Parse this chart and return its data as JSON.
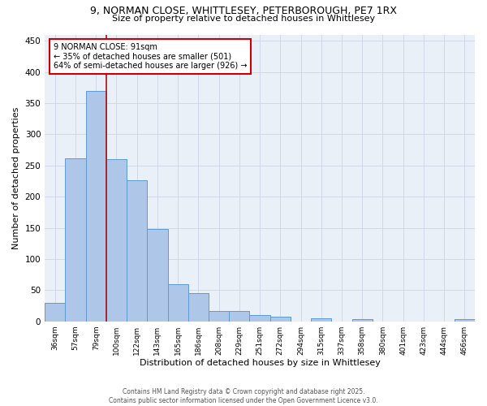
{
  "title_line1": "9, NORMAN CLOSE, WHITTLESEY, PETERBOROUGH, PE7 1RX",
  "title_line2": "Size of property relative to detached houses in Whittlesey",
  "xlabel": "Distribution of detached houses by size in Whittlesey",
  "ylabel": "Number of detached properties",
  "categories": [
    "36sqm",
    "57sqm",
    "79sqm",
    "100sqm",
    "122sqm",
    "143sqm",
    "165sqm",
    "186sqm",
    "208sqm",
    "229sqm",
    "251sqm",
    "272sqm",
    "294sqm",
    "315sqm",
    "337sqm",
    "358sqm",
    "380sqm",
    "401sqm",
    "423sqm",
    "444sqm",
    "466sqm"
  ],
  "values": [
    30,
    262,
    370,
    260,
    226,
    148,
    60,
    45,
    17,
    17,
    10,
    7,
    0,
    5,
    0,
    3,
    0,
    0,
    0,
    0,
    3
  ],
  "bar_color": "#aec6e8",
  "bar_edge_color": "#5b9bd5",
  "grid_color": "#d0d8ea",
  "background_color": "#eaf0f8",
  "vline_color": "#aa1111",
  "annotation_text": "9 NORMAN CLOSE: 91sqm\n← 35% of detached houses are smaller (501)\n64% of semi-detached houses are larger (926) →",
  "annotation_box_color": "#cc0000",
  "footer_line1": "Contains HM Land Registry data © Crown copyright and database right 2025.",
  "footer_line2": "Contains public sector information licensed under the Open Government Licence v3.0.",
  "ylim": [
    0,
    460
  ],
  "yticks": [
    0,
    50,
    100,
    150,
    200,
    250,
    300,
    350,
    400,
    450
  ]
}
